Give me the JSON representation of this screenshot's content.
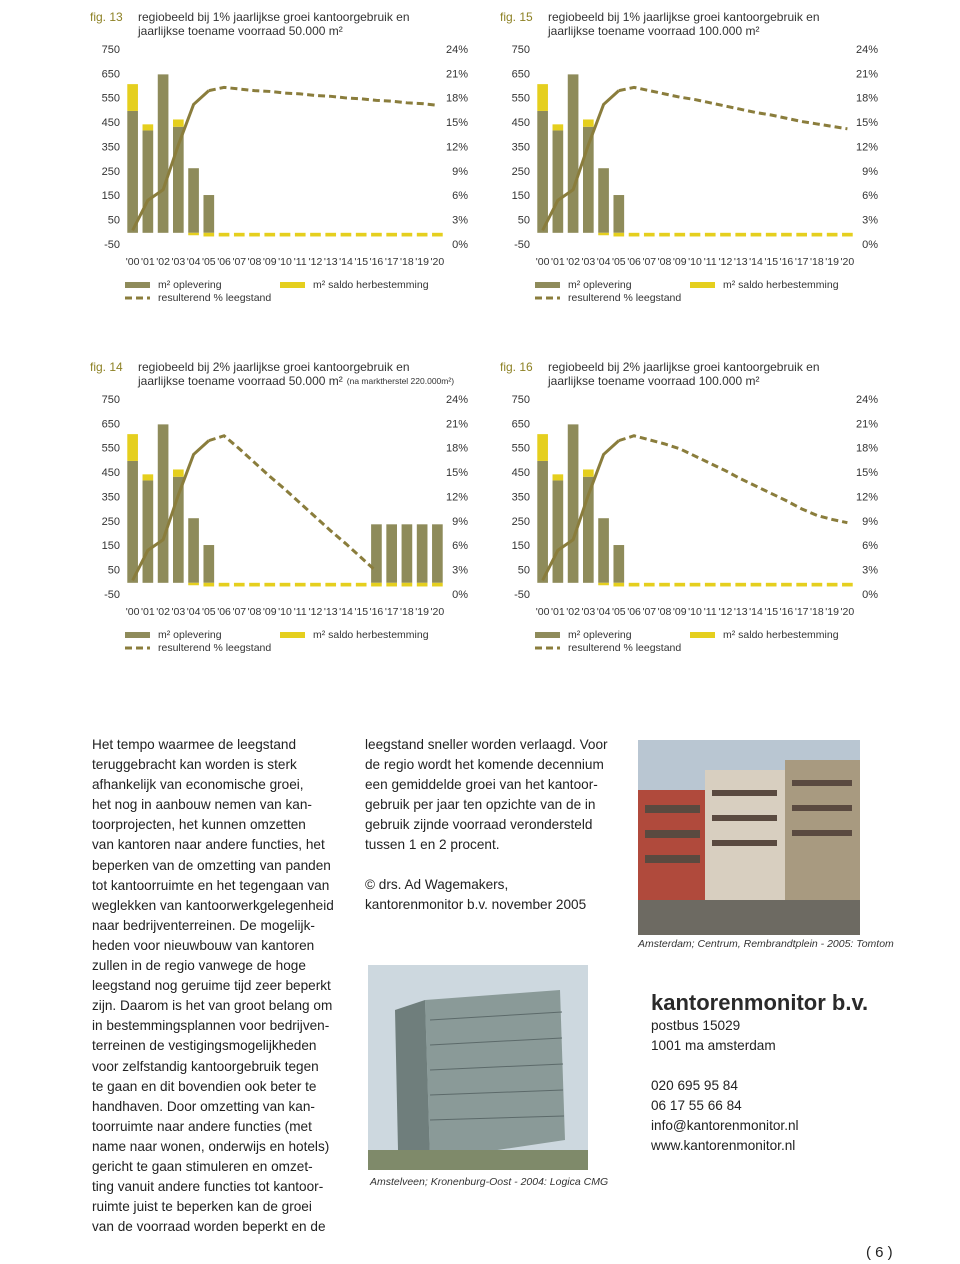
{
  "chart_data": [
    {
      "type": "bar",
      "fig": "fig. 13",
      "title": [
        "regiobeeld bij 1% jaarlijkse groei kantoorgebruik en",
        "jaarlijkse toename voorraad 50.000 m²"
      ],
      "categories": [
        "'00",
        "'01",
        "'02",
        "'03",
        "'04",
        "'05",
        "'06",
        "'07",
        "'08",
        "'09",
        "'10",
        "'11",
        "'12",
        "'13",
        "'14",
        "'15",
        "'16",
        "'17",
        "'18",
        "'19",
        "'20"
      ],
      "series": [
        {
          "name": "m² oplevering",
          "color": "#8e8b5a",
          "values": [
            500,
            420,
            650,
            435,
            265,
            155,
            0,
            0,
            0,
            0,
            0,
            0,
            0,
            0,
            0,
            0,
            0,
            0,
            0,
            0,
            0
          ]
        },
        {
          "name": "m² saldo herbestemming",
          "color": "#e5cf1e",
          "stacked": true,
          "values": [
            110,
            25,
            0,
            30,
            -10,
            -15,
            -15,
            -15,
            -15,
            -15,
            -15,
            -15,
            -15,
            -15,
            -15,
            -15,
            -15,
            -15,
            -15,
            -15,
            -15
          ]
        },
        {
          "name": "resulterend % leegstand",
          "type": "line",
          "axis": "y2",
          "color": "#8a7d3c",
          "forecast_from": "'05",
          "values": [
            1.8,
            5.5,
            6.8,
            12.3,
            17.3,
            19.0,
            19.4,
            19.2,
            19.0,
            18.9,
            18.7,
            18.6,
            18.4,
            18.3,
            18.1,
            18.0,
            17.8,
            17.7,
            17.5,
            17.4,
            17.2
          ]
        }
      ],
      "ylim": [
        -50,
        750
      ],
      "yticks": [
        -50,
        50,
        150,
        250,
        350,
        450,
        550,
        650,
        750
      ],
      "y2lim": [
        0,
        24
      ],
      "y2ticks": [
        {
          "value": 0,
          "label": "0%"
        },
        {
          "value": 3,
          "label": "3%"
        },
        {
          "value": 6,
          "label": "6%"
        },
        {
          "value": 9,
          "label": "9%"
        },
        {
          "value": 12,
          "label": "12%"
        },
        {
          "value": 15,
          "label": "15%"
        },
        {
          "value": 18,
          "label": "18%"
        },
        {
          "value": 21,
          "label": "21%"
        },
        {
          "value": 24,
          "label": "24%"
        }
      ]
    },
    {
      "type": "bar",
      "fig": "fig. 15",
      "title": [
        "regiobeeld bij 1% jaarlijkse groei kantoorgebruik en",
        "jaarlijkse toename voorraad 100.000 m²"
      ],
      "categories": [
        "'00",
        "'01",
        "'02",
        "'03",
        "'04",
        "'05",
        "'06",
        "'07",
        "'08",
        "'09",
        "'10",
        "'11",
        "'12",
        "'13",
        "'14",
        "'15",
        "'16",
        "'17",
        "'18",
        "'19",
        "'20"
      ],
      "series": [
        {
          "name": "m² oplevering",
          "color": "#8e8b5a",
          "values": [
            500,
            420,
            650,
            435,
            265,
            155,
            0,
            0,
            0,
            0,
            0,
            0,
            0,
            0,
            0,
            0,
            0,
            0,
            0,
            0,
            0
          ]
        },
        {
          "name": "m² saldo herbestemming",
          "color": "#e5cf1e",
          "stacked": true,
          "values": [
            110,
            25,
            0,
            30,
            -10,
            -15,
            -15,
            -15,
            -15,
            -15,
            -15,
            -15,
            -15,
            -15,
            -15,
            -15,
            -15,
            -15,
            -15,
            -15,
            -15
          ]
        },
        {
          "name": "resulterend % leegstand",
          "type": "line",
          "axis": "y2",
          "color": "#8a7d3c",
          "forecast_from": "'05",
          "values": [
            1.8,
            5.5,
            6.8,
            12.3,
            17.3,
            19.0,
            19.4,
            19.0,
            18.6,
            18.2,
            17.9,
            17.5,
            17.1,
            16.7,
            16.3,
            16.0,
            15.6,
            15.2,
            14.9,
            14.6,
            14.3
          ]
        }
      ],
      "ylim": [
        -50,
        750
      ],
      "yticks": [
        -50,
        50,
        150,
        250,
        350,
        450,
        550,
        650,
        750
      ],
      "y2lim": [
        0,
        24
      ],
      "y2ticks": [
        {
          "value": 0,
          "label": "0%"
        },
        {
          "value": 3,
          "label": "3%"
        },
        {
          "value": 6,
          "label": "6%"
        },
        {
          "value": 9,
          "label": "9%"
        },
        {
          "value": 12,
          "label": "12%"
        },
        {
          "value": 15,
          "label": "15%"
        },
        {
          "value": 18,
          "label": "18%"
        },
        {
          "value": 21,
          "label": "21%"
        },
        {
          "value": 24,
          "label": "24%"
        }
      ]
    },
    {
      "type": "bar",
      "fig": "fig. 14",
      "title": [
        "regiobeeld bij 2% jaarlijkse groei kantoorgebruik en",
        "jaarlijkse toename voorraad 50.000 m²"
      ],
      "title_note": "(na marktherstel 220.000m²)",
      "categories": [
        "'00",
        "'01",
        "'02",
        "'03",
        "'04",
        "'05",
        "'06",
        "'07",
        "'08",
        "'09",
        "'10",
        "'11",
        "'12",
        "'13",
        "'14",
        "'15",
        "'16",
        "'17",
        "'18",
        "'19",
        "'20"
      ],
      "series": [
        {
          "name": "m² oplevering",
          "color": "#8e8b5a",
          "values": [
            500,
            420,
            650,
            435,
            265,
            155,
            0,
            0,
            0,
            0,
            0,
            0,
            0,
            0,
            0,
            0,
            240,
            240,
            240,
            240,
            240
          ]
        },
        {
          "name": "m² saldo herbestemming",
          "color": "#e5cf1e",
          "stacked": true,
          "values": [
            110,
            25,
            0,
            30,
            -10,
            -15,
            -15,
            -15,
            -15,
            -15,
            -15,
            -15,
            -15,
            -15,
            -15,
            -15,
            -15,
            -15,
            -15,
            -15,
            -15
          ]
        },
        {
          "name": "resulterend % leegstand",
          "type": "line",
          "axis": "y2",
          "color": "#8a7d3c",
          "forecast_from": "'05",
          "values": [
            1.8,
            5.5,
            6.8,
            12.3,
            17.3,
            19.0,
            19.6,
            18.0,
            16.3,
            14.6,
            13.0,
            11.3,
            9.6,
            7.9,
            6.3,
            4.6,
            2.9,
            null,
            null,
            null,
            null
          ]
        }
      ],
      "ylim": [
        -50,
        750
      ],
      "yticks": [
        -50,
        50,
        150,
        250,
        350,
        450,
        550,
        650,
        750
      ],
      "y2lim": [
        0,
        24
      ],
      "y2ticks": [
        {
          "value": 0,
          "label": "0%"
        },
        {
          "value": 3,
          "label": "3%"
        },
        {
          "value": 6,
          "label": "6%"
        },
        {
          "value": 9,
          "label": "9%"
        },
        {
          "value": 12,
          "label": "12%"
        },
        {
          "value": 15,
          "label": "15%"
        },
        {
          "value": 18,
          "label": "18%"
        },
        {
          "value": 21,
          "label": "21%"
        },
        {
          "value": 24,
          "label": "24%"
        }
      ]
    },
    {
      "type": "bar",
      "fig": "fig. 16",
      "title": [
        "regiobeeld bij 2% jaarlijkse groei kantoorgebruik en",
        "jaarlijkse toename voorraad 100.000 m²"
      ],
      "categories": [
        "'00",
        "'01",
        "'02",
        "'03",
        "'04",
        "'05",
        "'06",
        "'07",
        "'08",
        "'09",
        "'10",
        "'11",
        "'12",
        "'13",
        "'14",
        "'15",
        "'16",
        "'17",
        "'18",
        "'19",
        "'20"
      ],
      "series": [
        {
          "name": "m² oplevering",
          "color": "#8e8b5a",
          "values": [
            500,
            420,
            650,
            435,
            265,
            155,
            0,
            0,
            0,
            0,
            0,
            0,
            0,
            0,
            0,
            0,
            0,
            0,
            0,
            0,
            0
          ]
        },
        {
          "name": "m² saldo herbestemming",
          "color": "#e5cf1e",
          "stacked": true,
          "values": [
            110,
            25,
            0,
            30,
            -10,
            -15,
            -15,
            -15,
            -15,
            -15,
            -15,
            -15,
            -15,
            -15,
            -15,
            -15,
            -15,
            -15,
            -15,
            -15,
            -15
          ]
        },
        {
          "name": "resulterend % leegstand",
          "type": "line",
          "axis": "y2",
          "color": "#8a7d3c",
          "forecast_from": "'05",
          "values": [
            1.8,
            5.5,
            6.8,
            12.3,
            17.3,
            19.0,
            19.6,
            19.1,
            18.6,
            18.0,
            17.1,
            16.2,
            15.3,
            14.3,
            13.4,
            12.5,
            11.6,
            10.6,
            9.8,
            9.3,
            8.9
          ]
        }
      ],
      "ylim": [
        -50,
        750
      ],
      "yticks": [
        -50,
        50,
        150,
        250,
        350,
        450,
        550,
        650,
        750
      ],
      "y2lim": [
        0,
        24
      ],
      "y2ticks": [
        {
          "value": 0,
          "label": "0%"
        },
        {
          "value": 3,
          "label": "3%"
        },
        {
          "value": 6,
          "label": "6%"
        },
        {
          "value": 9,
          "label": "9%"
        },
        {
          "value": 12,
          "label": "12%"
        },
        {
          "value": 15,
          "label": "15%"
        },
        {
          "value": 18,
          "label": "18%"
        },
        {
          "value": 21,
          "label": "21%"
        },
        {
          "value": 24,
          "label": "24%"
        }
      ]
    }
  ],
  "text": {
    "left_column": [
      "Het tempo waarmee de leegstand",
      "teruggebracht kan worden is sterk",
      "afhankelijk van economische groei,",
      "het nog in aanbouw nemen van kan-",
      "toorprojecten, het kunnen omzetten",
      "van kantoren naar andere functies, het",
      "beperken van de omzetting van panden",
      "tot kantoorruimte en het tegengaan van",
      "weglekken van kantoorwerkgelegenheid",
      "naar bedrijventerreinen. De mogelijk-",
      "heden voor nieuwbouw van kantoren",
      "zullen in de regio vanwege de hoge",
      "leegstand nog geruime tijd zeer beperkt",
      "zijn. Daarom is het van groot belang om",
      "in bestemmingsplannen voor bedrijven-",
      "terreinen de vestigingsmogelijkheden",
      "voor zelfstandig kantoorgebruik tegen",
      "te gaan en dit bovendien ook beter te",
      "handhaven. Door omzetting van kan-",
      "toorruimte naar andere functies (met",
      "name naar wonen, onderwijs en hotels)",
      "gericht te gaan stimuleren en omzet-",
      "ting vanuit andere functies tot kantoor-",
      "ruimte juist te beperken kan de groei",
      "van de voorraad worden beperkt en de"
    ],
    "middle_column": [
      "leegstand sneller worden verlaagd. Voor",
      "de regio wordt het komende decennium",
      "een gemiddelde groei van het kantoor-",
      "gebruik per jaar ten opzichte van de in",
      "gebruik zijnde voorraad verondersteld",
      "tussen 1 en 2 procent."
    ],
    "signature": [
      "© drs. Ad Wagemakers,",
      "kantorenmonitor b.v. november 2005"
    ],
    "photo_captions": [
      "Amsterdam; Centrum, Rembrandtplein - 2005: Tomtom",
      "Amstelveen; Kronenburg-Oost - 2004: Logica CMG"
    ],
    "company": {
      "name": "kantorenmonitor b.v.",
      "address": [
        "postbus 15029",
        "1001 ma amsterdam"
      ],
      "contact": [
        "020 695 95 84",
        "06 17 55 66 84",
        "info@kantorenmonitor.nl",
        "www.kantorenmonitor.nl"
      ]
    },
    "page_number": "( 6 )"
  }
}
